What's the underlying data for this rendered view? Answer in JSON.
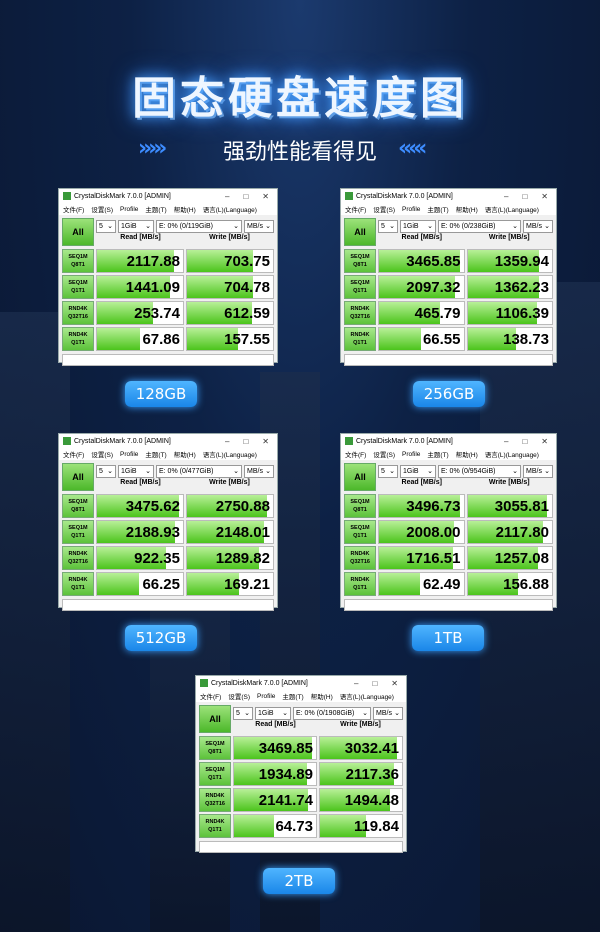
{
  "title": "固态硬盘速度图",
  "subtitle": "强劲性能看得见",
  "arrows_left": "›››››",
  "arrows_right": "‹‹‹‹‹",
  "colors": {
    "accent": "#2d8cff",
    "bar_green": "#4cc41c"
  },
  "app": {
    "window_title": "CrystalDiskMark 7.0.0  [ADMIN]",
    "menu": [
      "文件(F)",
      "设置(S)",
      "Profile",
      "主题(T)",
      "帮助(H)",
      "语言(L)(Language)"
    ],
    "all_label": "All",
    "count": "5",
    "size": "1GiB",
    "unit": "MB/s",
    "read_header": "Read [MB/s]",
    "write_header": "Write [MB/s]",
    "tests": [
      [
        "SEQ1M",
        "Q8T1"
      ],
      [
        "SEQ1M",
        "Q1T1"
      ],
      [
        "RND4K",
        "Q32T16"
      ],
      [
        "RND4K",
        "Q1T1"
      ]
    ]
  },
  "panels": [
    {
      "capacity": "128GB",
      "drive": "E: 0% (0/119GiB)",
      "read": [
        "2117.88",
        "1441.09",
        "253.74",
        "67.86"
      ],
      "write": [
        "703.75",
        "704.78",
        "612.59",
        "157.55"
      ]
    },
    {
      "capacity": "256GB",
      "drive": "E: 0% (0/238GiB)",
      "read": [
        "3465.85",
        "2097.32",
        "465.79",
        "66.55"
      ],
      "write": [
        "1359.94",
        "1362.23",
        "1106.39",
        "138.73"
      ]
    },
    {
      "capacity": "512GB",
      "drive": "E: 0% (0/477GiB)",
      "read": [
        "3475.62",
        "2188.93",
        "922.35",
        "66.25"
      ],
      "write": [
        "2750.88",
        "2148.01",
        "1289.82",
        "169.21"
      ]
    },
    {
      "capacity": "1TB",
      "drive": "E: 0% (0/954GiB)",
      "read": [
        "3496.73",
        "2008.00",
        "1716.51",
        "62.49"
      ],
      "write": [
        "3055.81",
        "2117.80",
        "1257.08",
        "156.88"
      ]
    },
    {
      "capacity": "2TB",
      "drive": "E: 0% (0/1908GiB)",
      "read": [
        "3469.85",
        "1934.89",
        "2141.74",
        "64.73"
      ],
      "write": [
        "3032.41",
        "2117.36",
        "1494.48",
        "119.84"
      ]
    }
  ]
}
